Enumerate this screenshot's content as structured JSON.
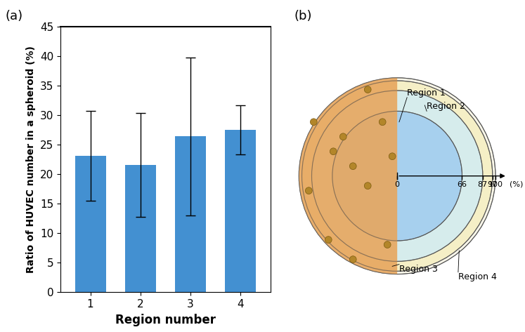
{
  "chart_data": {
    "type": "bar",
    "panel_label": "(a)",
    "x_label": "Region number",
    "y_label": "Ratio of HUVEC number in a spheroid (%)",
    "categories": [
      "1",
      "2",
      "3",
      "4"
    ],
    "values": [
      23.1,
      21.5,
      26.4,
      27.5
    ],
    "errors": [
      7.6,
      8.8,
      13.4,
      4.2
    ],
    "color": "#4390d1",
    "ylim": [
      0,
      45
    ],
    "yticks": [
      0,
      5,
      10,
      15,
      20,
      25,
      30,
      35,
      40,
      45
    ],
    "grid": false
  },
  "diagram": {
    "panel_label": "(b)",
    "radius_ticks": [
      0,
      66,
      87,
      97,
      100
    ],
    "radius_unit": "(%)",
    "regions": [
      "Region 1",
      "Region 2",
      "Region 3",
      "Region 4"
    ]
  }
}
